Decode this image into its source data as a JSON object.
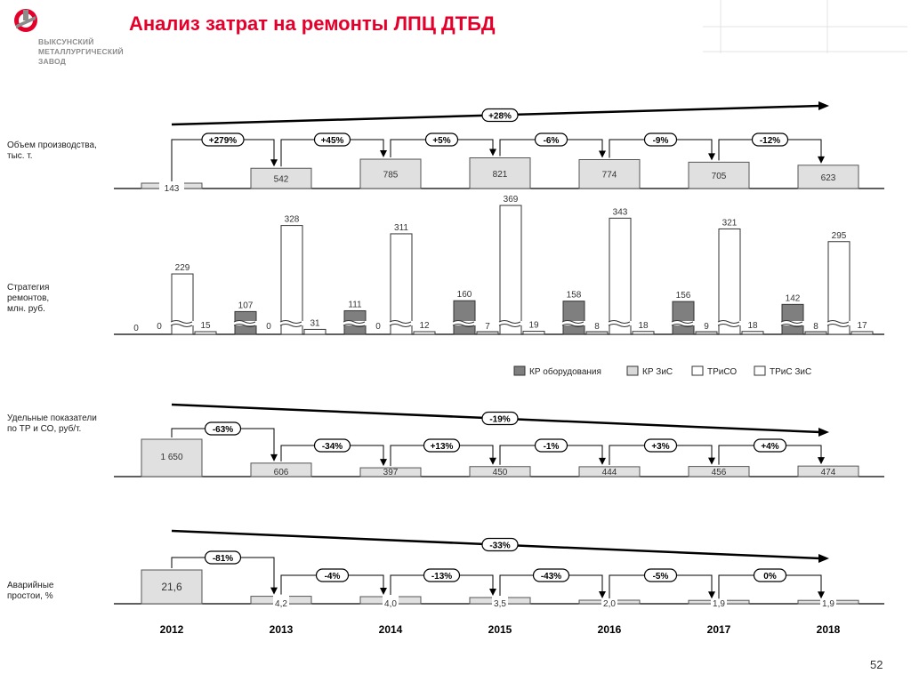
{
  "header": {
    "title": "Анализ затрат на ремонты ЛПЦ ДТБД",
    "logo_lines": [
      "ВЫКСУНСКИЙ",
      "МЕТАЛЛУРГИЧЕСКИЙ",
      "ЗАВОД"
    ],
    "page_number": "52"
  },
  "colors": {
    "title": "#e4002b",
    "kr_equipment": "#7f7f7f",
    "kr_buildings": "#d9d9d9",
    "trso": "#ffffff",
    "trs_zis": "#ffffff",
    "logo_red": "#e4002b"
  },
  "chart_data": [
    {
      "type": "bar",
      "row_label": "Объем производства, тыс. т.",
      "categories": [
        "2012",
        "2013",
        "2014",
        "2015",
        "2016",
        "2017",
        "2018"
      ],
      "values": [
        143,
        542,
        785,
        821,
        774,
        705,
        623
      ],
      "value_labels": [
        "143",
        "542",
        "785",
        "821",
        "774",
        "705",
        "623"
      ],
      "step_changes": [
        "+279%",
        "+45%",
        "+5%",
        "-6%",
        "-9%",
        "-12%"
      ],
      "total_change": "+28%"
    },
    {
      "type": "bar",
      "row_label": "Стратегия ремонтов, млн. руб.",
      "categories": [
        "2012",
        "2013",
        "2014",
        "2015",
        "2016",
        "2017",
        "2018"
      ],
      "series": [
        {
          "name": "КР оборудования",
          "values": [
            0,
            107,
            111,
            160,
            158,
            156,
            142
          ]
        },
        {
          "name": "КР ЗиС",
          "values": [
            0,
            0,
            0,
            7,
            8,
            9,
            8
          ]
        },
        {
          "name": "ТРиСО",
          "values": [
            229,
            328,
            311,
            369,
            343,
            321,
            295
          ]
        },
        {
          "name": "ТРиС ЗиС",
          "values": [
            15,
            31,
            12,
            19,
            18,
            18,
            17
          ]
        }
      ],
      "legend_position": "bottom-right"
    },
    {
      "type": "bar",
      "row_label": "Удельные показатели по ТР и СО, руб/т.",
      "categories": [
        "2012",
        "2013",
        "2014",
        "2015",
        "2016",
        "2017",
        "2018"
      ],
      "values": [
        1650,
        606,
        397,
        450,
        444,
        456,
        474
      ],
      "value_labels": [
        "1 650",
        "606",
        "397",
        "450",
        "444",
        "456",
        "474"
      ],
      "step_changes": [
        "-63%",
        "-34%",
        "+13%",
        "-1%",
        "+3%",
        "+4%"
      ],
      "total_change": "-19%"
    },
    {
      "type": "bar",
      "row_label": "Аварийные простои, %",
      "categories": [
        "2012",
        "2013",
        "2014",
        "2015",
        "2016",
        "2017",
        "2018"
      ],
      "values": [
        21.6,
        4.2,
        4.0,
        3.5,
        2.0,
        1.9,
        1.9
      ],
      "value_labels": [
        "21,6",
        "4,2",
        "4,0",
        "3,5",
        "2,0",
        "1,9",
        "1,9"
      ],
      "step_changes": [
        "-81%",
        "-4%",
        "-13%",
        "-43%",
        "-5%",
        "0%"
      ],
      "total_change": "-33%"
    }
  ]
}
